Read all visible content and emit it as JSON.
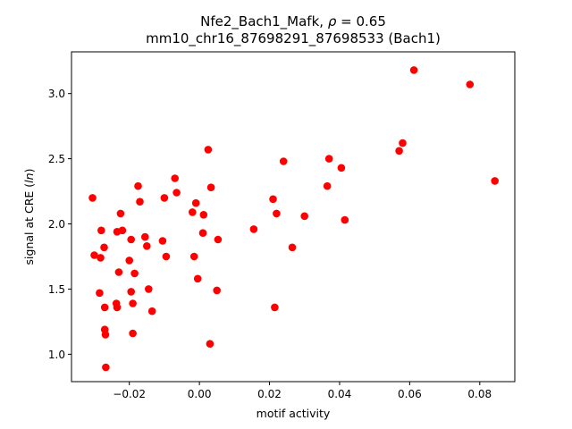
{
  "chart_data": {
    "type": "scatter",
    "title_line1_prefix": "Nfe2_Bach1_Mafk, ",
    "title_line1_rho": "ρ",
    "title_line1_suffix": " = 0.65",
    "title_line2": "mm10_chr16_87698291_87698533 (Bach1)",
    "xlabel": "motif activity",
    "ylabel_prefix": "signal at CRE (",
    "ylabel_italic": "ln",
    "ylabel_suffix": ")",
    "xlim": [
      -0.0365,
      0.09
    ],
    "ylim": [
      0.79,
      3.32
    ],
    "xticks": [
      -0.02,
      0.0,
      0.02,
      0.04,
      0.06,
      0.08
    ],
    "xtick_labels": [
      "−0.02",
      "0.00",
      "0.02",
      "0.04",
      "0.06",
      "0.08"
    ],
    "yticks": [
      1.0,
      1.5,
      2.0,
      2.5,
      3.0
    ],
    "ytick_labels": [
      "1.0",
      "1.5",
      "2.0",
      "2.5",
      "3.0"
    ],
    "marker_color": "#ff0000",
    "grid": false,
    "points": [
      [
        -0.0305,
        2.2
      ],
      [
        -0.03,
        1.76
      ],
      [
        -0.0285,
        1.47
      ],
      [
        -0.0282,
        1.74
      ],
      [
        -0.028,
        1.95
      ],
      [
        -0.0272,
        1.82
      ],
      [
        -0.027,
        1.36
      ],
      [
        -0.027,
        1.19
      ],
      [
        -0.0268,
        1.15
      ],
      [
        -0.0267,
        0.9
      ],
      [
        -0.0237,
        1.39
      ],
      [
        -0.0235,
        1.36
      ],
      [
        -0.0235,
        1.94
      ],
      [
        -0.023,
        1.63
      ],
      [
        -0.0225,
        2.08
      ],
      [
        -0.022,
        1.95
      ],
      [
        -0.02,
        1.72
      ],
      [
        -0.0195,
        1.48
      ],
      [
        -0.0195,
        1.88
      ],
      [
        -0.019,
        1.39
      ],
      [
        -0.019,
        1.16
      ],
      [
        -0.0185,
        1.62
      ],
      [
        -0.0175,
        2.29
      ],
      [
        -0.017,
        2.17
      ],
      [
        -0.0155,
        1.9
      ],
      [
        -0.015,
        1.83
      ],
      [
        -0.0145,
        1.5
      ],
      [
        -0.0135,
        1.33
      ],
      [
        -0.0105,
        1.87
      ],
      [
        -0.01,
        2.2
      ],
      [
        -0.0095,
        1.75
      ],
      [
        -0.007,
        2.35
      ],
      [
        -0.0065,
        2.24
      ],
      [
        -0.002,
        2.09
      ],
      [
        -0.0015,
        1.75
      ],
      [
        -0.001,
        2.16
      ],
      [
        -0.0005,
        1.58
      ],
      [
        0.001,
        1.93
      ],
      [
        0.0012,
        2.07
      ],
      [
        0.0025,
        2.57
      ],
      [
        0.003,
        1.08
      ],
      [
        0.0033,
        2.28
      ],
      [
        0.005,
        1.49
      ],
      [
        0.0053,
        1.88
      ],
      [
        0.0155,
        1.96
      ],
      [
        0.021,
        2.19
      ],
      [
        0.0215,
        1.36
      ],
      [
        0.022,
        2.08
      ],
      [
        0.024,
        2.48
      ],
      [
        0.0265,
        1.82
      ],
      [
        0.03,
        2.06
      ],
      [
        0.0365,
        2.29
      ],
      [
        0.037,
        2.5
      ],
      [
        0.0405,
        2.43
      ],
      [
        0.0415,
        2.03
      ],
      [
        0.057,
        2.56
      ],
      [
        0.058,
        2.62
      ],
      [
        0.0612,
        3.18
      ],
      [
        0.0772,
        3.07
      ],
      [
        0.0843,
        2.33
      ]
    ]
  }
}
